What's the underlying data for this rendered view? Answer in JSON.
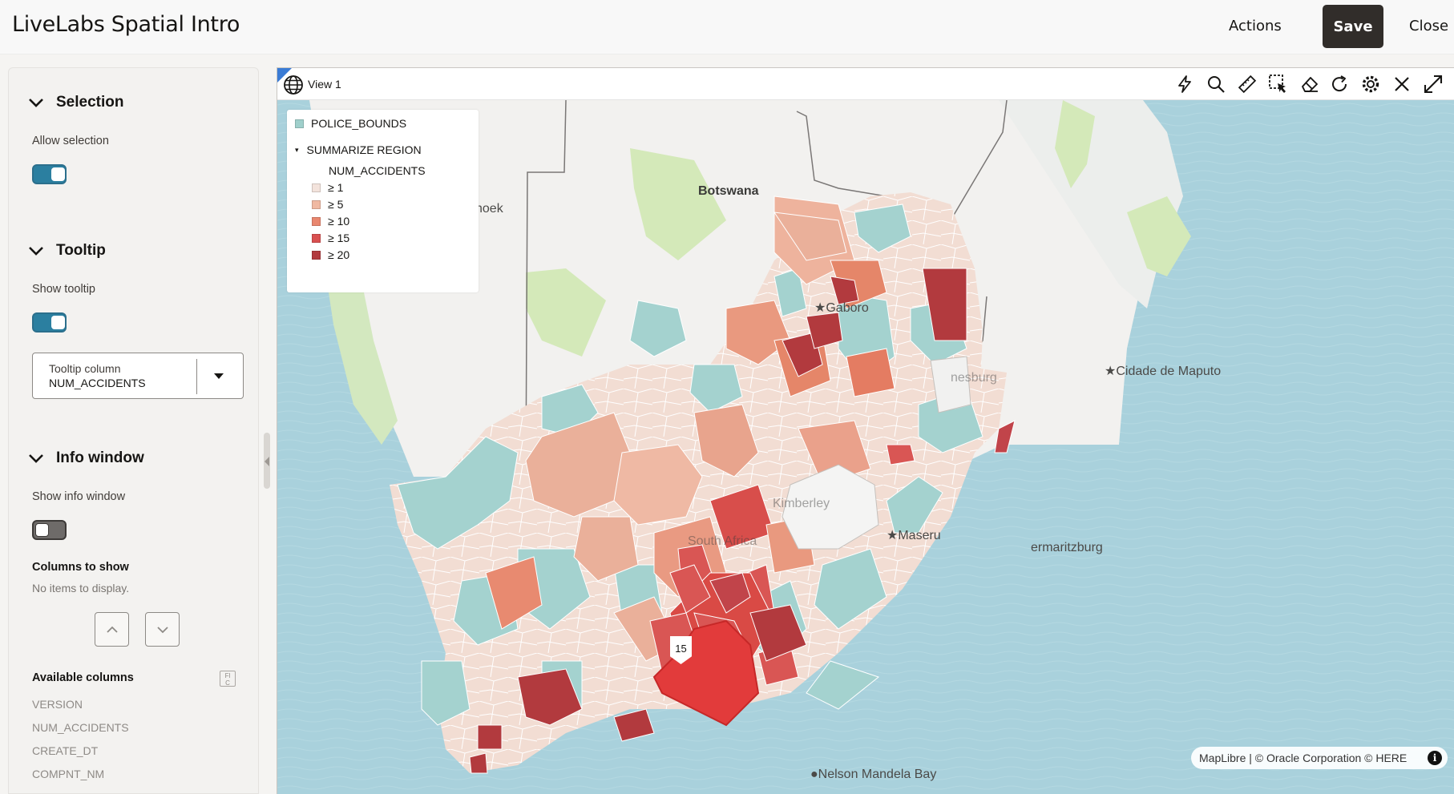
{
  "header": {
    "app_title": "LiveLabs Spatial Intro",
    "actions_label": "Actions",
    "save_label": "Save",
    "close_label": "Close"
  },
  "left_panel": {
    "selection": {
      "title": "Selection",
      "allow_label": "Allow selection",
      "allow_on": true
    },
    "tooltip": {
      "title": "Tooltip",
      "show_label": "Show tooltip",
      "show_on": true,
      "column_label": "Tooltip column",
      "column_value": "NUM_ACCIDENTS"
    },
    "info_window": {
      "title": "Info window",
      "show_label": "Show info window",
      "show_on": false,
      "columns_title": "Columns to show",
      "columns_empty": "No items to display.",
      "available_title": "Available columns",
      "available": [
        "VERSION",
        "NUM_ACCIDENTS",
        "CREATE_DT",
        "COMPNT_NM"
      ]
    }
  },
  "map": {
    "view_label": "View 1",
    "toolbar_icons": [
      "lightning-icon",
      "search-icon",
      "ruler-icon",
      "select-region-icon",
      "eraser-icon",
      "refresh-icon",
      "settings-icon",
      "close-icon",
      "expand-icon"
    ],
    "legend": {
      "layer1": "POLICE_BOUNDS",
      "layer2": "SUMMARIZE REGION",
      "field": "NUM_ACCIDENTS",
      "classes": [
        {
          "label": "≥ 1",
          "color": "#f3e3dc"
        },
        {
          "label": "≥ 5",
          "color": "#f0b9a2"
        },
        {
          "label": "≥ 10",
          "color": "#e9876f"
        },
        {
          "label": "≥ 15",
          "color": "#d95050"
        },
        {
          "label": "≥ 20",
          "color": "#b23a3e"
        }
      ],
      "layer1_color": "#9fcfcb"
    },
    "places": {
      "botswana": "Botswana",
      "windhoek": "hoek",
      "gaborone": "Gaboro",
      "maputo": "Cidade de Maputo",
      "kimberley": "Kimberley",
      "south_africa": "South Africa",
      "maseru": "Maseru",
      "pmb": "ermaritzburg",
      "nelson": "Nelson Mandela Bay",
      "joburg": "nesburg"
    },
    "pin_value": "15",
    "attribution": "MapLibre | © Oracle Corporation   © HERE",
    "info_symbol": "i"
  }
}
